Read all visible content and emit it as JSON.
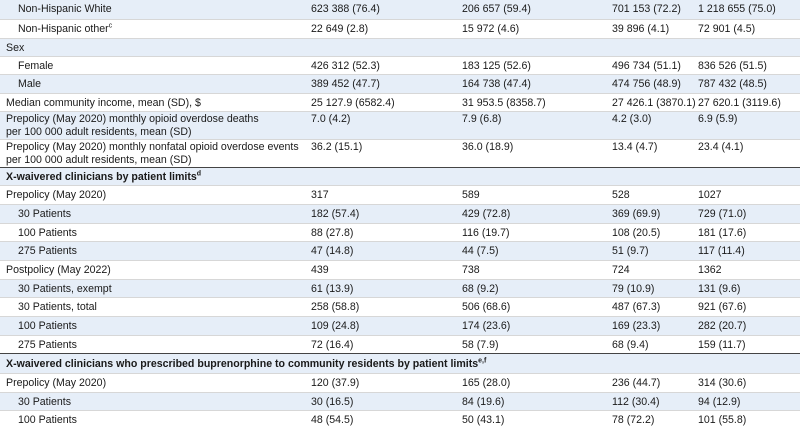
{
  "rows": [
    {
      "label": "Non-Hispanic White",
      "indent": true,
      "values": [
        "623 388 (76.4)",
        "206 657 (59.4)",
        "701 153 (72.2)",
        "1 218 655 (75.0)"
      ]
    },
    {
      "label": "Non-Hispanic other",
      "sup": "c",
      "indent": true,
      "values": [
        "22 649 (2.8)",
        "15 972 (4.6)",
        "39 896 (4.1)",
        "72 901 (4.5)"
      ]
    },
    {
      "label": "Sex",
      "indent": false,
      "values": [
        "",
        "",
        "",
        ""
      ]
    },
    {
      "label": "Female",
      "indent": true,
      "values": [
        "426 312 (52.3)",
        "183 125 (52.6)",
        "496 734 (51.1)",
        "836 526 (51.5)"
      ]
    },
    {
      "label": "Male",
      "indent": true,
      "values": [
        "389 452 (47.7)",
        "164 738 (47.4)",
        "474 756 (48.9)",
        "787 432 (48.5)"
      ]
    },
    {
      "label": "Median community income, mean (SD), $",
      "indent": false,
      "values": [
        "25 127.9 (6582.4)",
        "31 953.5 (8358.7)",
        "27 426.1 (3870.1)",
        "27 620.1 (3119.6)"
      ]
    },
    {
      "label": "Prepolicy (May 2020) monthly opioid overdose deaths\nper 100 000 adult residents, mean (SD)",
      "indent": false,
      "values": [
        "7.0 (4.2)",
        "7.9 (6.8)",
        "4.2 (3.0)",
        "6.9 (5.9)"
      ]
    },
    {
      "label": "Prepolicy (May 2020) monthly nonfatal opioid overdose events\nper 100 000 adult residents, mean (SD)",
      "indent": false,
      "values": [
        "36.2 (15.1)",
        "36.0 (18.9)",
        "13.4 (4.7)",
        "23.4 (4.1)"
      ]
    },
    {
      "label": "X-waivered clinicians by patient limits",
      "sup": "d",
      "section": true,
      "values": [
        "",
        "",
        "",
        ""
      ]
    },
    {
      "label": "Prepolicy (May 2020)",
      "indent": false,
      "values": [
        "317",
        "589",
        "528",
        "1027"
      ]
    },
    {
      "label": "30 Patients",
      "indent": true,
      "values": [
        "182 (57.4)",
        "429 (72.8)",
        "369 (69.9)",
        "729 (71.0)"
      ]
    },
    {
      "label": "100 Patients",
      "indent": true,
      "values": [
        "88 (27.8)",
        "116 (19.7)",
        "108 (20.5)",
        "181 (17.6)"
      ]
    },
    {
      "label": "275 Patients",
      "indent": true,
      "values": [
        "47 (14.8)",
        "44 (7.5)",
        "51 (9.7)",
        "117 (11.4)"
      ]
    },
    {
      "label": "Postpolicy (May 2022)",
      "indent": false,
      "values": [
        "439",
        "738",
        "724",
        "1362"
      ]
    },
    {
      "label": "30 Patients, exempt",
      "indent": true,
      "values": [
        "61 (13.9)",
        "68 (9.2)",
        "79 (10.9)",
        "131 (9.6)"
      ]
    },
    {
      "label": "30 Patients, total",
      "indent": true,
      "values": [
        "258 (58.8)",
        "506 (68.6)",
        "487 (67.3)",
        "921 (67.6)"
      ]
    },
    {
      "label": "100 Patients",
      "indent": true,
      "values": [
        "109 (24.8)",
        "174 (23.6)",
        "169 (23.3)",
        "282 (20.7)"
      ]
    },
    {
      "label": "275 Patients",
      "indent": true,
      "values": [
        "72 (16.4)",
        "58 (7.9)",
        "68 (9.4)",
        "159 (11.7)"
      ]
    },
    {
      "label": "X-waivered clinicians who prescribed buprenorphine to community residents by patient limits",
      "sup": "e,f",
      "section": true,
      "values": [
        "",
        "",
        "",
        ""
      ]
    },
    {
      "label": "Prepolicy (May 2020)",
      "indent": false,
      "values": [
        "120 (37.9)",
        "165 (28.0)",
        "236 (44.7)",
        "314 (30.6)"
      ]
    },
    {
      "label": "30 Patients",
      "indent": true,
      "values": [
        "30 (16.5)",
        "84 (19.6)",
        "112 (30.4)",
        "94 (12.9)"
      ]
    },
    {
      "label": "100 Patients",
      "indent": true,
      "values": [
        "48 (54.5)",
        "50 (43.1)",
        "78 (72.2)",
        "101 (55.8)"
      ]
    }
  ]
}
